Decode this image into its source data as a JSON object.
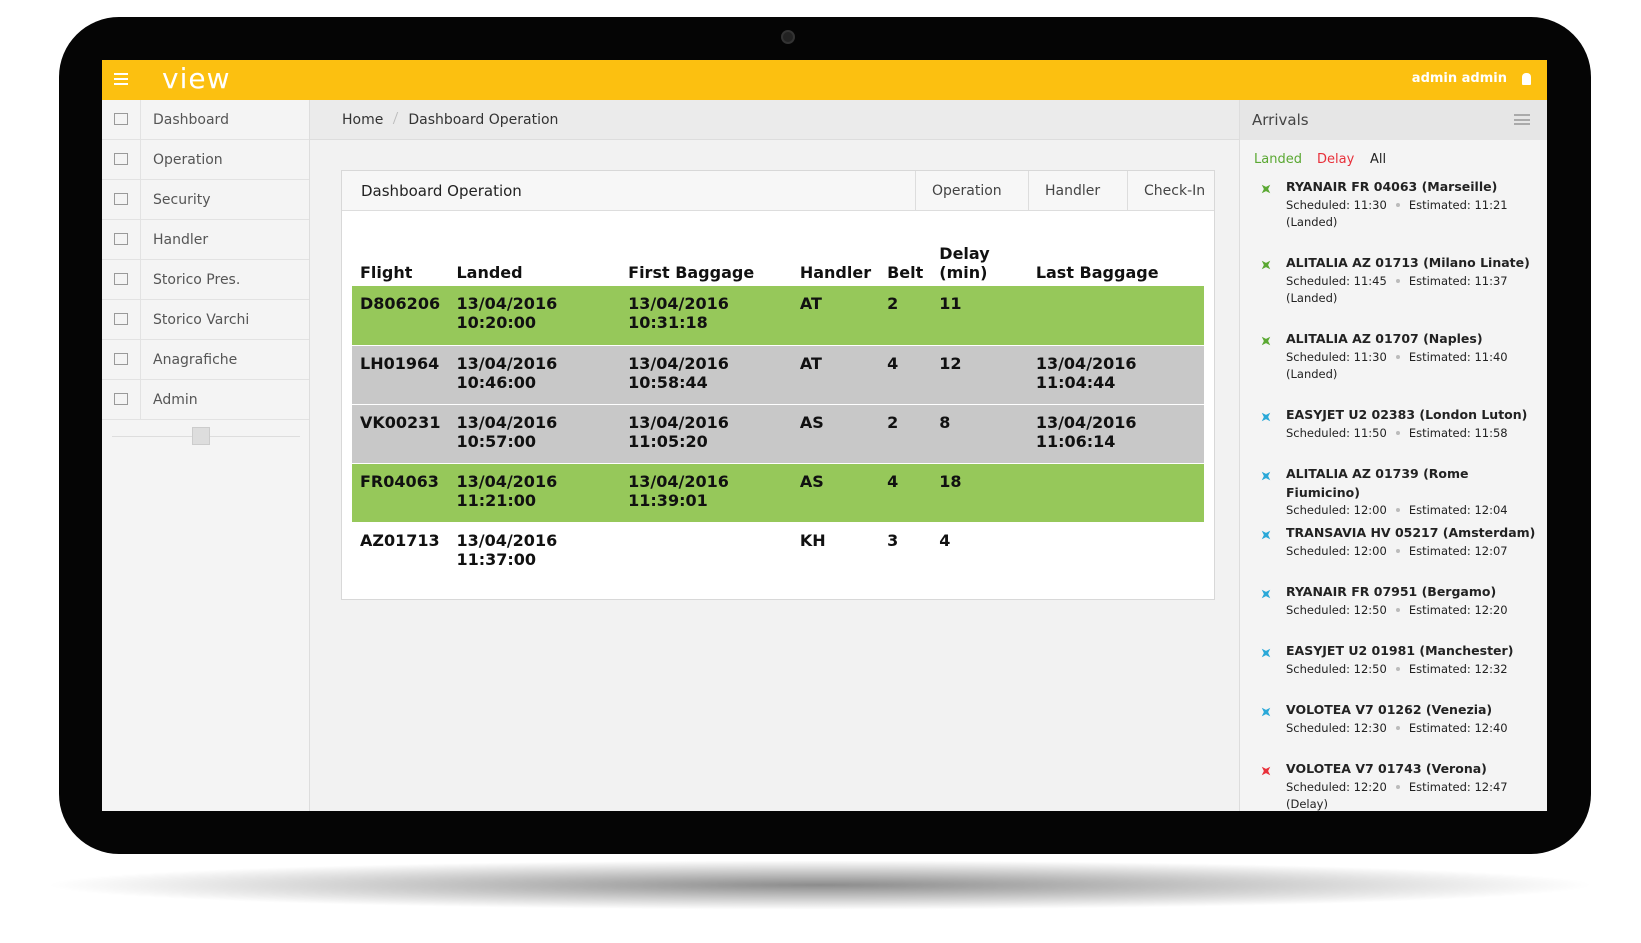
{
  "header": {
    "logo": "view",
    "user": "admin admin"
  },
  "sidebar": {
    "items": [
      "Dashboard",
      "Operation",
      "Security",
      "Handler",
      "Storico Pres.",
      "Storico Varchi",
      "Anagrafiche",
      "Admin"
    ]
  },
  "breadcrumb": [
    "Home",
    "Dashboard Operation"
  ],
  "panel": {
    "title": "Dashboard Operation",
    "tabs": [
      "Operation",
      "Handler",
      "Check-In"
    ]
  },
  "table": {
    "columns": [
      "Flight",
      "Landed",
      "First Baggage",
      "Handler",
      "Belt",
      "Delay (min)",
      "Last Baggage"
    ],
    "rows": [
      {
        "color": "#96c85a",
        "cells": [
          "D806206",
          "13/04/2016 10:20:00",
          "13/04/2016 10:31:18",
          "AT",
          "2",
          "11",
          ""
        ]
      },
      {
        "color": "#c8c8c8",
        "cells": [
          "LH01964",
          "13/04/2016 10:46:00",
          "13/04/2016 10:58:44",
          "AT",
          "4",
          "12",
          "13/04/2016 11:04:44"
        ]
      },
      {
        "color": "#c8c8c8",
        "cells": [
          "VK00231",
          "13/04/2016 10:57:00",
          "13/04/2016 11:05:20",
          "AS",
          "2",
          "8",
          "13/04/2016 11:06:14"
        ]
      },
      {
        "color": "#96c85a",
        "cells": [
          "FR04063",
          "13/04/2016 11:21:00",
          "13/04/2016 11:39:01",
          "AS",
          "4",
          "18",
          ""
        ]
      },
      {
        "color": "#ffffff",
        "cells": [
          "AZ01713",
          "13/04/2016 11:37:00",
          "",
          "KH",
          "3",
          "4",
          ""
        ]
      }
    ]
  },
  "arrivals": {
    "title": "Arrivals",
    "filters": [
      {
        "label": "Landed",
        "color": "#5aa832"
      },
      {
        "label": "Delay",
        "color": "#e8303a"
      },
      {
        "label": "All",
        "color": "#222222"
      }
    ],
    "flights": [
      {
        "name": "RYANAIR FR 04063 (Marseille)",
        "scheduled": "Scheduled: 11:30",
        "estimated": "Estimated: 11:21",
        "status": "(Landed)",
        "color": "#5aa832"
      },
      {
        "name": "ALITALIA AZ 01713 (Milano Linate)",
        "scheduled": "Scheduled: 11:45",
        "estimated": "Estimated: 11:37",
        "status": "(Landed)",
        "color": "#5aa832"
      },
      {
        "name": "ALITALIA AZ 01707 (Naples)",
        "scheduled": "Scheduled: 11:30",
        "estimated": "Estimated: 11:40",
        "status": "(Landed)",
        "color": "#5aa832"
      },
      {
        "name": "EASYJET U2 02383 (London Luton)",
        "scheduled": "Scheduled: 11:50",
        "estimated": "Estimated: 11:58",
        "color": "#2aa8d8"
      },
      {
        "name": "ALITALIA AZ 01739 (Rome Fiumicino)",
        "scheduled": "Scheduled: 12:00",
        "estimated": "Estimated: 12:04",
        "color": "#2aa8d8"
      },
      {
        "name": "TRANSAVIA HV 05217 (Amsterdam)",
        "scheduled": "Scheduled: 12:00",
        "estimated": "Estimated: 12:07",
        "color": "#2aa8d8"
      },
      {
        "name": "RYANAIR FR 07951 (Bergamo)",
        "scheduled": "Scheduled: 12:50",
        "estimated": "Estimated: 12:20",
        "color": "#2aa8d8"
      },
      {
        "name": "EASYJET U2 01981 (Manchester)",
        "scheduled": "Scheduled: 12:50",
        "estimated": "Estimated: 12:32",
        "color": "#2aa8d8"
      },
      {
        "name": "VOLOTEA V7 01262 (Venezia)",
        "scheduled": "Scheduled: 12:30",
        "estimated": "Estimated: 12:40",
        "color": "#2aa8d8"
      },
      {
        "name": "VOLOTEA V7 01743 (Verona)",
        "scheduled": "Scheduled: 12:20",
        "estimated": "Estimated: 12:47 (Delay)",
        "color": "#e8303a"
      }
    ]
  }
}
